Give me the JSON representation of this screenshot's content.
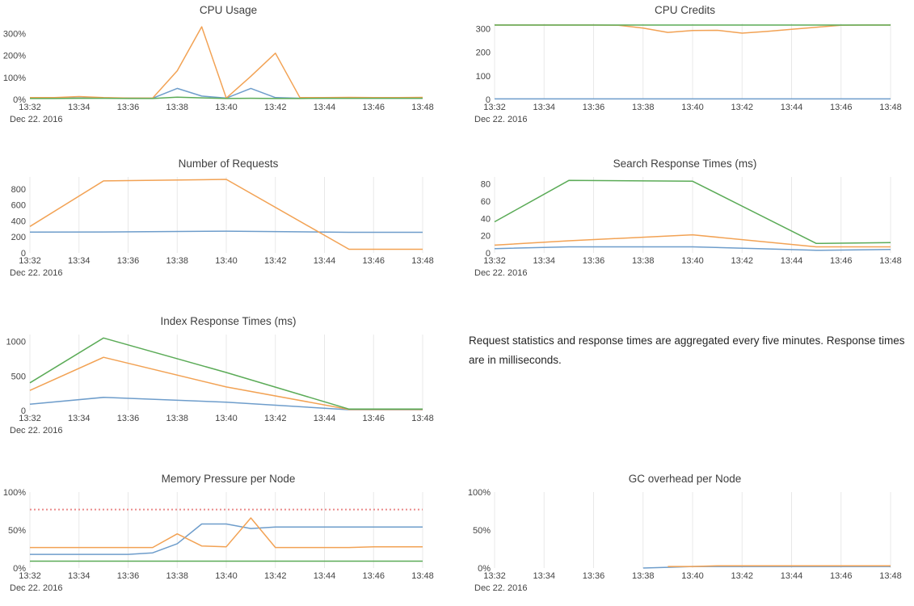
{
  "note": {
    "text": "Request statistics and response times are aggregated every five minutes. Response times are in milliseconds."
  },
  "palette": {
    "blue": "#6e9dcb",
    "orange": "#f2a254",
    "green": "#5bab57",
    "threshold_red": "#ea8a8a",
    "grid": "#e8e8e8",
    "tick_text": "#444444",
    "title_text": "#3f3f3f"
  },
  "chart_data": [
    {
      "id": "cpu-usage",
      "type": "line",
      "title": "CPU Usage",
      "date_label": "Dec 22. 2016",
      "x_ticks": [
        "13:32",
        "13:34",
        "13:36",
        "13:38",
        "13:40",
        "13:42",
        "13:44",
        "13:46",
        "13:48"
      ],
      "x_range": [
        0,
        16
      ],
      "ylim": [
        0,
        345
      ],
      "grid": false,
      "y_ticks": [
        {
          "v": 0,
          "label": "0%"
        },
        {
          "v": 100,
          "label": "100%"
        },
        {
          "v": 200,
          "label": "200%"
        },
        {
          "v": 300,
          "label": "300%"
        }
      ],
      "series": [
        {
          "name": "instance-blue",
          "color": "blue",
          "x": [
            0,
            1,
            2,
            3,
            4,
            5,
            6,
            7,
            8,
            9,
            10,
            11,
            12,
            13,
            14,
            15,
            16
          ],
          "y": [
            6,
            6,
            6,
            6,
            6,
            5,
            50,
            15,
            6,
            50,
            8,
            5,
            5,
            5,
            5,
            5,
            5
          ]
        },
        {
          "name": "instance-orange",
          "color": "orange",
          "x": [
            0,
            1,
            2,
            3,
            4,
            5,
            6,
            7,
            8,
            9,
            10,
            11,
            12,
            13,
            14,
            15,
            16
          ],
          "y": [
            8,
            8,
            13,
            8,
            6,
            6,
            130,
            330,
            6,
            105,
            210,
            8,
            8,
            9,
            8,
            8,
            9
          ]
        },
        {
          "name": "instance-green",
          "color": "green",
          "x": [
            0,
            1,
            2,
            3,
            4,
            5,
            6,
            7,
            8,
            9,
            10,
            11,
            12,
            13,
            14,
            15,
            16
          ],
          "y": [
            4,
            4,
            5,
            5,
            4,
            4,
            10,
            7,
            4,
            5,
            4,
            4,
            5,
            5,
            5,
            5,
            5
          ]
        }
      ]
    },
    {
      "id": "cpu-credits",
      "type": "line",
      "title": "CPU Credits",
      "date_label": "Dec 22. 2016",
      "x_ticks": [
        "13:32",
        "13:34",
        "13:36",
        "13:38",
        "13:40",
        "13:42",
        "13:44",
        "13:46",
        "13:48"
      ],
      "x_range": [
        0,
        16
      ],
      "ylim": [
        0,
        322
      ],
      "grid": true,
      "y_ticks": [
        {
          "v": 0,
          "label": "0"
        },
        {
          "v": 100,
          "label": "100"
        },
        {
          "v": 200,
          "label": "200"
        },
        {
          "v": 300,
          "label": "300"
        }
      ],
      "series": [
        {
          "name": "instance-blue",
          "color": "blue",
          "x": [
            0,
            1,
            2,
            3,
            4,
            5,
            6,
            7,
            8,
            9,
            10,
            11,
            12,
            13,
            14,
            15,
            16
          ],
          "y": [
            2,
            2,
            2,
            2,
            2,
            2,
            2,
            2,
            2,
            2,
            2,
            2,
            2,
            2,
            2,
            2,
            2
          ]
        },
        {
          "name": "instance-orange",
          "color": "orange",
          "x": [
            0,
            1,
            2,
            3,
            4,
            5,
            6,
            7,
            8,
            9,
            10,
            11,
            12,
            13,
            14,
            15,
            16
          ],
          "y": [
            315,
            315,
            315,
            315,
            315,
            314,
            302,
            284,
            292,
            293,
            281,
            288,
            297,
            306,
            314,
            315,
            315
          ]
        },
        {
          "name": "instance-green",
          "color": "green",
          "x": [
            0,
            1,
            2,
            3,
            4,
            5,
            6,
            7,
            8,
            9,
            10,
            11,
            12,
            13,
            14,
            15,
            16
          ],
          "y": [
            315,
            315,
            315,
            315,
            315,
            315,
            315,
            315,
            315,
            315,
            315,
            315,
            315,
            315,
            315,
            315,
            315
          ]
        }
      ]
    },
    {
      "id": "number-of-requests",
      "type": "line",
      "title": "Number of Requests",
      "date_label": "Dec 22. 2016",
      "x_ticks": [
        "13:32",
        "13:34",
        "13:36",
        "13:38",
        "13:40",
        "13:42",
        "13:44",
        "13:46",
        "13:48"
      ],
      "x_range": [
        0,
        16
      ],
      "ylim": [
        0,
        950
      ],
      "grid": true,
      "y_ticks": [
        {
          "v": 0,
          "label": "0"
        },
        {
          "v": 200,
          "label": "200"
        },
        {
          "v": 400,
          "label": "400"
        },
        {
          "v": 600,
          "label": "600"
        },
        {
          "v": 800,
          "label": "800"
        }
      ],
      "series": [
        {
          "name": "requests-blue",
          "color": "blue",
          "x": [
            0,
            3,
            8,
            13,
            16
          ],
          "y": [
            260,
            262,
            272,
            258,
            258
          ]
        },
        {
          "name": "requests-orange",
          "color": "orange",
          "x": [
            0,
            3,
            8,
            13,
            16
          ],
          "y": [
            330,
            900,
            920,
            45,
            45
          ]
        }
      ]
    },
    {
      "id": "search-response-times",
      "type": "line",
      "title": "Search Response Times (ms)",
      "date_label": "Dec 22. 2016",
      "x_ticks": [
        "13:32",
        "13:34",
        "13:36",
        "13:38",
        "13:40",
        "13:42",
        "13:44",
        "13:46",
        "13:48"
      ],
      "x_range": [
        0,
        16
      ],
      "ylim": [
        0,
        88
      ],
      "grid": true,
      "y_ticks": [
        {
          "v": 0,
          "label": "0"
        },
        {
          "v": 20,
          "label": "20"
        },
        {
          "v": 40,
          "label": "40"
        },
        {
          "v": 60,
          "label": "60"
        },
        {
          "v": 80,
          "label": "80"
        }
      ],
      "series": [
        {
          "name": "search-blue",
          "color": "blue",
          "x": [
            0,
            3,
            8,
            13,
            16
          ],
          "y": [
            5,
            7,
            7,
            3,
            4
          ]
        },
        {
          "name": "search-orange",
          "color": "orange",
          "x": [
            0,
            3,
            8,
            13,
            16
          ],
          "y": [
            9,
            14,
            21,
            7,
            7
          ]
        },
        {
          "name": "search-green",
          "color": "green",
          "x": [
            0,
            3,
            8,
            13,
            16
          ],
          "y": [
            36,
            84,
            83,
            11,
            12
          ]
        }
      ]
    },
    {
      "id": "index-response-times",
      "type": "line",
      "title": "Index Response Times (ms)",
      "date_label": "Dec 22. 2016",
      "x_ticks": [
        "13:32",
        "13:34",
        "13:36",
        "13:38",
        "13:40",
        "13:42",
        "13:44",
        "13:46",
        "13:48"
      ],
      "x_range": [
        0,
        16
      ],
      "ylim": [
        0,
        1100
      ],
      "grid": true,
      "y_ticks": [
        {
          "v": 0,
          "label": "0"
        },
        {
          "v": 500,
          "label": "500"
        },
        {
          "v": 1000,
          "label": "1000"
        }
      ],
      "series": [
        {
          "name": "index-blue",
          "color": "blue",
          "x": [
            0,
            3,
            8,
            13,
            16
          ],
          "y": [
            90,
            190,
            120,
            10,
            10
          ]
        },
        {
          "name": "index-orange",
          "color": "orange",
          "x": [
            0,
            3,
            8,
            13,
            16
          ],
          "y": [
            290,
            770,
            340,
            15,
            15
          ]
        },
        {
          "name": "index-green",
          "color": "green",
          "x": [
            0,
            3,
            8,
            13,
            16
          ],
          "y": [
            400,
            1050,
            550,
            20,
            20
          ]
        }
      ]
    },
    {
      "id": "memory-pressure",
      "type": "line",
      "title": "Memory Pressure per Node",
      "date_label": "Dec 22. 2016",
      "x_ticks": [
        "13:32",
        "13:34",
        "13:36",
        "13:38",
        "13:40",
        "13:42",
        "13:44",
        "13:46",
        "13:48"
      ],
      "x_range": [
        0,
        16
      ],
      "ylim": [
        0,
        100
      ],
      "grid": true,
      "y_ticks": [
        {
          "v": 0,
          "label": "0%"
        },
        {
          "v": 50,
          "label": "50%"
        },
        {
          "v": 100,
          "label": "100%"
        }
      ],
      "threshold": {
        "value": 77,
        "color": "threshold_red"
      },
      "series": [
        {
          "name": "node-blue",
          "color": "blue",
          "x": [
            0,
            1,
            2,
            3,
            4,
            5,
            6,
            7,
            8,
            9,
            10,
            11,
            12,
            13,
            14,
            15,
            16
          ],
          "y": [
            18,
            18,
            18,
            18,
            18,
            20,
            32,
            58,
            58,
            52,
            54,
            54,
            54,
            54,
            54,
            54,
            54
          ]
        },
        {
          "name": "node-orange",
          "color": "orange",
          "x": [
            0,
            1,
            2,
            3,
            4,
            5,
            6,
            7,
            8,
            9,
            10,
            11,
            12,
            13,
            14,
            15,
            16
          ],
          "y": [
            27,
            27,
            27,
            27,
            27,
            27,
            45,
            29,
            28,
            66,
            27,
            27,
            27,
            27,
            28,
            28,
            28
          ]
        },
        {
          "name": "node-green",
          "color": "green",
          "x": [
            0,
            1,
            2,
            3,
            4,
            5,
            6,
            7,
            8,
            9,
            10,
            11,
            12,
            13,
            14,
            15,
            16
          ],
          "y": [
            9,
            9,
            9,
            9,
            9,
            9,
            9,
            9,
            9,
            9,
            9,
            9,
            9,
            9,
            9,
            9,
            9
          ]
        }
      ]
    },
    {
      "id": "gc-overhead",
      "type": "line",
      "title": "GC overhead per Node",
      "date_label": "Dec 22. 2016",
      "x_ticks": [
        "13:32",
        "13:34",
        "13:36",
        "13:38",
        "13:40",
        "13:42",
        "13:44",
        "13:46",
        "13:48"
      ],
      "x_range": [
        0,
        16
      ],
      "ylim": [
        0,
        100
      ],
      "grid": true,
      "y_ticks": [
        {
          "v": 0,
          "label": "0%"
        },
        {
          "v": 50,
          "label": "50%"
        },
        {
          "v": 100,
          "label": "100%"
        }
      ],
      "series": [
        {
          "name": "node-blue",
          "color": "blue",
          "x": [
            6,
            7,
            8,
            9,
            10,
            11,
            12,
            13,
            14,
            15,
            16
          ],
          "y": [
            0,
            1,
            2,
            2,
            2,
            2,
            2,
            2,
            2,
            2,
            2
          ]
        },
        {
          "name": "node-orange",
          "color": "orange",
          "x": [
            7,
            8,
            9,
            10,
            11,
            12,
            13,
            14,
            15,
            16
          ],
          "y": [
            2,
            2,
            3,
            3,
            3,
            3,
            3,
            3,
            3,
            3
          ]
        }
      ]
    }
  ]
}
